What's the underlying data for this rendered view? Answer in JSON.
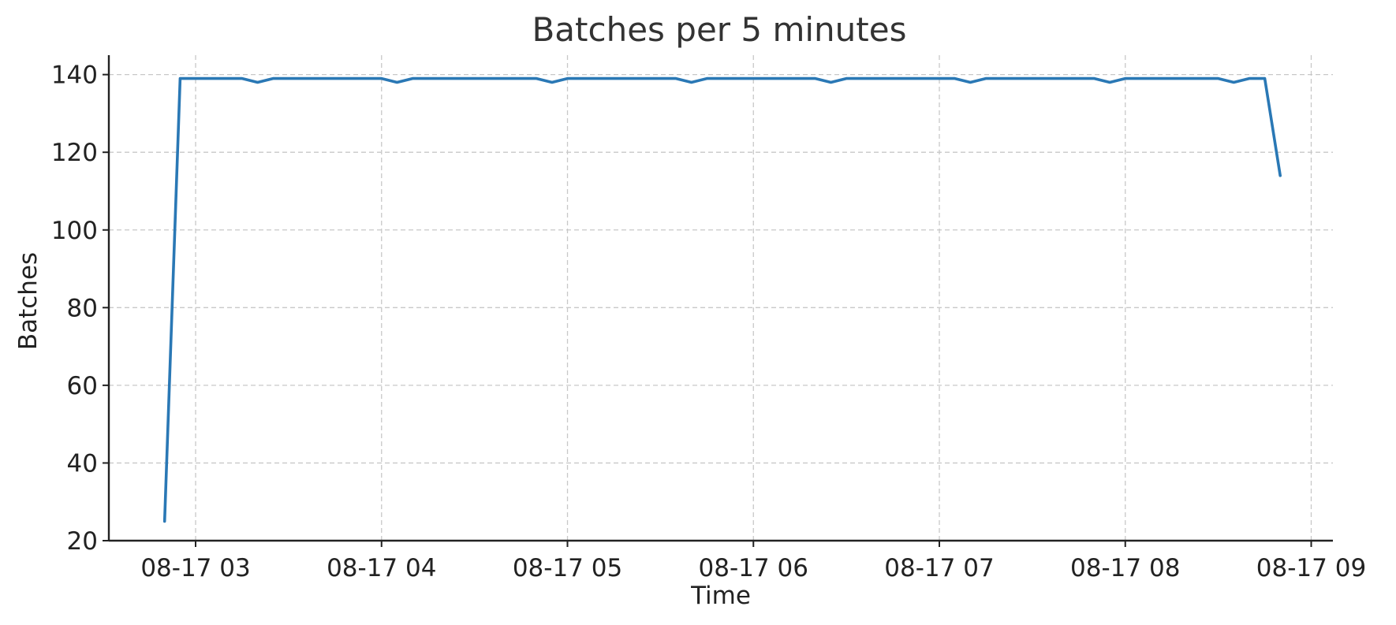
{
  "chart_data": {
    "type": "line",
    "title": "Batches per 5 minutes",
    "xlabel": "Time",
    "ylabel": "Batches",
    "xlim": [
      "08-17 02:32",
      "08-17 09:07"
    ],
    "ylim": [
      20,
      145
    ],
    "x_ticks": [
      {
        "value": "08-17 03:00",
        "label": "08-17 03"
      },
      {
        "value": "08-17 04:00",
        "label": "08-17 04"
      },
      {
        "value": "08-17 05:00",
        "label": "08-17 05"
      },
      {
        "value": "08-17 06:00",
        "label": "08-17 06"
      },
      {
        "value": "08-17 07:00",
        "label": "08-17 07"
      },
      {
        "value": "08-17 08:00",
        "label": "08-17 08"
      },
      {
        "value": "08-17 09:00",
        "label": "08-17 09"
      }
    ],
    "y_ticks": [
      20,
      40,
      60,
      80,
      100,
      120,
      140
    ],
    "grid": true,
    "colors": {
      "series": "#2a78b5"
    },
    "series": [
      {
        "x": [
          "08-17 02:50",
          "08-17 02:55",
          "08-17 03:00",
          "08-17 03:05",
          "08-17 03:10",
          "08-17 03:15",
          "08-17 03:20",
          "08-17 03:25",
          "08-17 03:30",
          "08-17 03:35",
          "08-17 03:40",
          "08-17 03:45",
          "08-17 03:50",
          "08-17 03:55",
          "08-17 04:00",
          "08-17 04:05",
          "08-17 04:10",
          "08-17 04:15",
          "08-17 04:20",
          "08-17 04:25",
          "08-17 04:30",
          "08-17 04:35",
          "08-17 04:40",
          "08-17 04:45",
          "08-17 04:50",
          "08-17 04:55",
          "08-17 05:00",
          "08-17 05:05",
          "08-17 05:10",
          "08-17 05:15",
          "08-17 05:20",
          "08-17 05:25",
          "08-17 05:30",
          "08-17 05:35",
          "08-17 05:40",
          "08-17 05:45",
          "08-17 05:50",
          "08-17 05:55",
          "08-17 06:00",
          "08-17 06:05",
          "08-17 06:10",
          "08-17 06:15",
          "08-17 06:20",
          "08-17 06:25",
          "08-17 06:30",
          "08-17 06:35",
          "08-17 06:40",
          "08-17 06:45",
          "08-17 06:50",
          "08-17 06:55",
          "08-17 07:00",
          "08-17 07:05",
          "08-17 07:10",
          "08-17 07:15",
          "08-17 07:20",
          "08-17 07:25",
          "08-17 07:30",
          "08-17 07:35",
          "08-17 07:40",
          "08-17 07:45",
          "08-17 07:50",
          "08-17 07:55",
          "08-17 08:00",
          "08-17 08:05",
          "08-17 08:10",
          "08-17 08:15",
          "08-17 08:20",
          "08-17 08:25",
          "08-17 08:30",
          "08-17 08:35",
          "08-17 08:40",
          "08-17 08:45",
          "08-17 08:50"
        ],
        "values": [
          25,
          139,
          139,
          139,
          139,
          139,
          138,
          139,
          139,
          139,
          139,
          139,
          139,
          139,
          139,
          138,
          139,
          139,
          139,
          139,
          139,
          139,
          139,
          139,
          139,
          138,
          139,
          139,
          139,
          139,
          139,
          139,
          139,
          139,
          138,
          139,
          139,
          139,
          139,
          139,
          139,
          139,
          139,
          138,
          139,
          139,
          139,
          139,
          139,
          139,
          139,
          139,
          138,
          139,
          139,
          139,
          139,
          139,
          139,
          139,
          139,
          138,
          139,
          139,
          139,
          139,
          139,
          139,
          139,
          138,
          139,
          139,
          114
        ]
      }
    ]
  }
}
